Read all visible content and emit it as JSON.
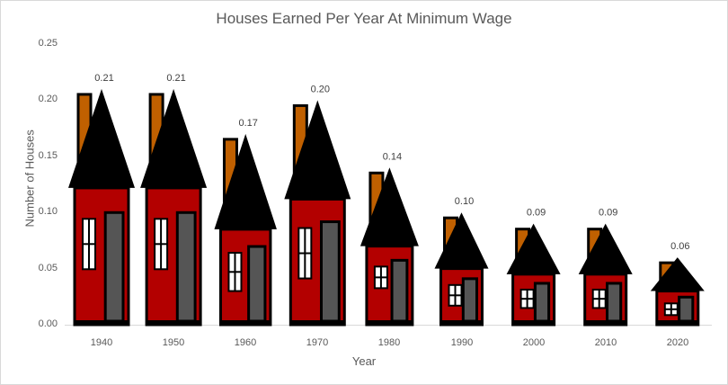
{
  "chart_data": {
    "type": "bar",
    "title": "Houses Earned Per Year At Minimum Wage",
    "xlabel": "Year",
    "ylabel": "Number of Houses",
    "categories": [
      "1940",
      "1950",
      "1960",
      "1970",
      "1980",
      "1990",
      "2000",
      "2010",
      "2020"
    ],
    "values": [
      0.21,
      0.21,
      0.17,
      0.2,
      0.14,
      0.1,
      0.09,
      0.09,
      0.06
    ],
    "data_labels": [
      "0.21",
      "0.21",
      "0.17",
      "0.20",
      "0.14",
      "0.10",
      "0.09",
      "0.09",
      "0.06"
    ],
    "ylim": [
      0,
      0.25
    ],
    "yticks": [
      "0.00",
      "0.05",
      "0.10",
      "0.15",
      "0.20",
      "0.25"
    ],
    "grid": false,
    "legend": "none",
    "bar_style": "house pictograph"
  },
  "colors": {
    "body": "#b30000",
    "roof": "#000000",
    "chimney": "#c06000",
    "door": "#555555",
    "window": "#ffffff",
    "text": "#595959"
  }
}
